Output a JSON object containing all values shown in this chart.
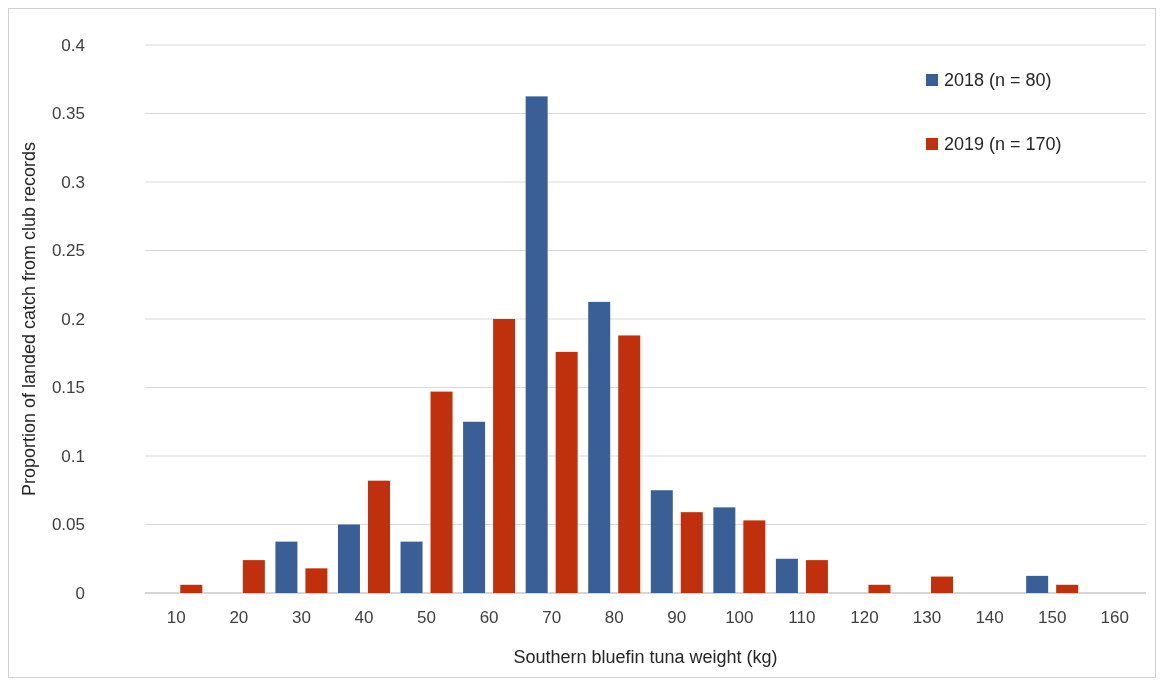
{
  "chart_data": {
    "type": "bar",
    "xlabel": "Southern bluefin tuna weight (kg)",
    "ylabel": "Proportion of landed catch from club records",
    "categories": [
      "10",
      "20",
      "30",
      "40",
      "50",
      "60",
      "70",
      "80",
      "90",
      "100",
      "110",
      "120",
      "130",
      "140",
      "150",
      "160"
    ],
    "series": [
      {
        "name": "2018 (n = 80)",
        "color": "#3a5f96",
        "values": [
          0,
          0,
          0.0375,
          0.05,
          0.0375,
          0.125,
          0.3625,
          0.2125,
          0.075,
          0.0625,
          0.025,
          0,
          0,
          0,
          0.0125,
          0
        ]
      },
      {
        "name": "2019 (n = 170)",
        "color": "#c0300c",
        "values": [
          0.006,
          0.024,
          0.018,
          0.082,
          0.147,
          0.2,
          0.176,
          0.188,
          0.059,
          0.053,
          0.024,
          0.006,
          0.012,
          0,
          0.006,
          0
        ]
      }
    ],
    "ylim": [
      0,
      0.4
    ],
    "yticks": [
      0,
      0.05,
      0.1,
      0.15,
      0.2,
      0.25,
      0.3,
      0.35,
      0.4
    ],
    "grid": "y",
    "legend": "top right"
  }
}
